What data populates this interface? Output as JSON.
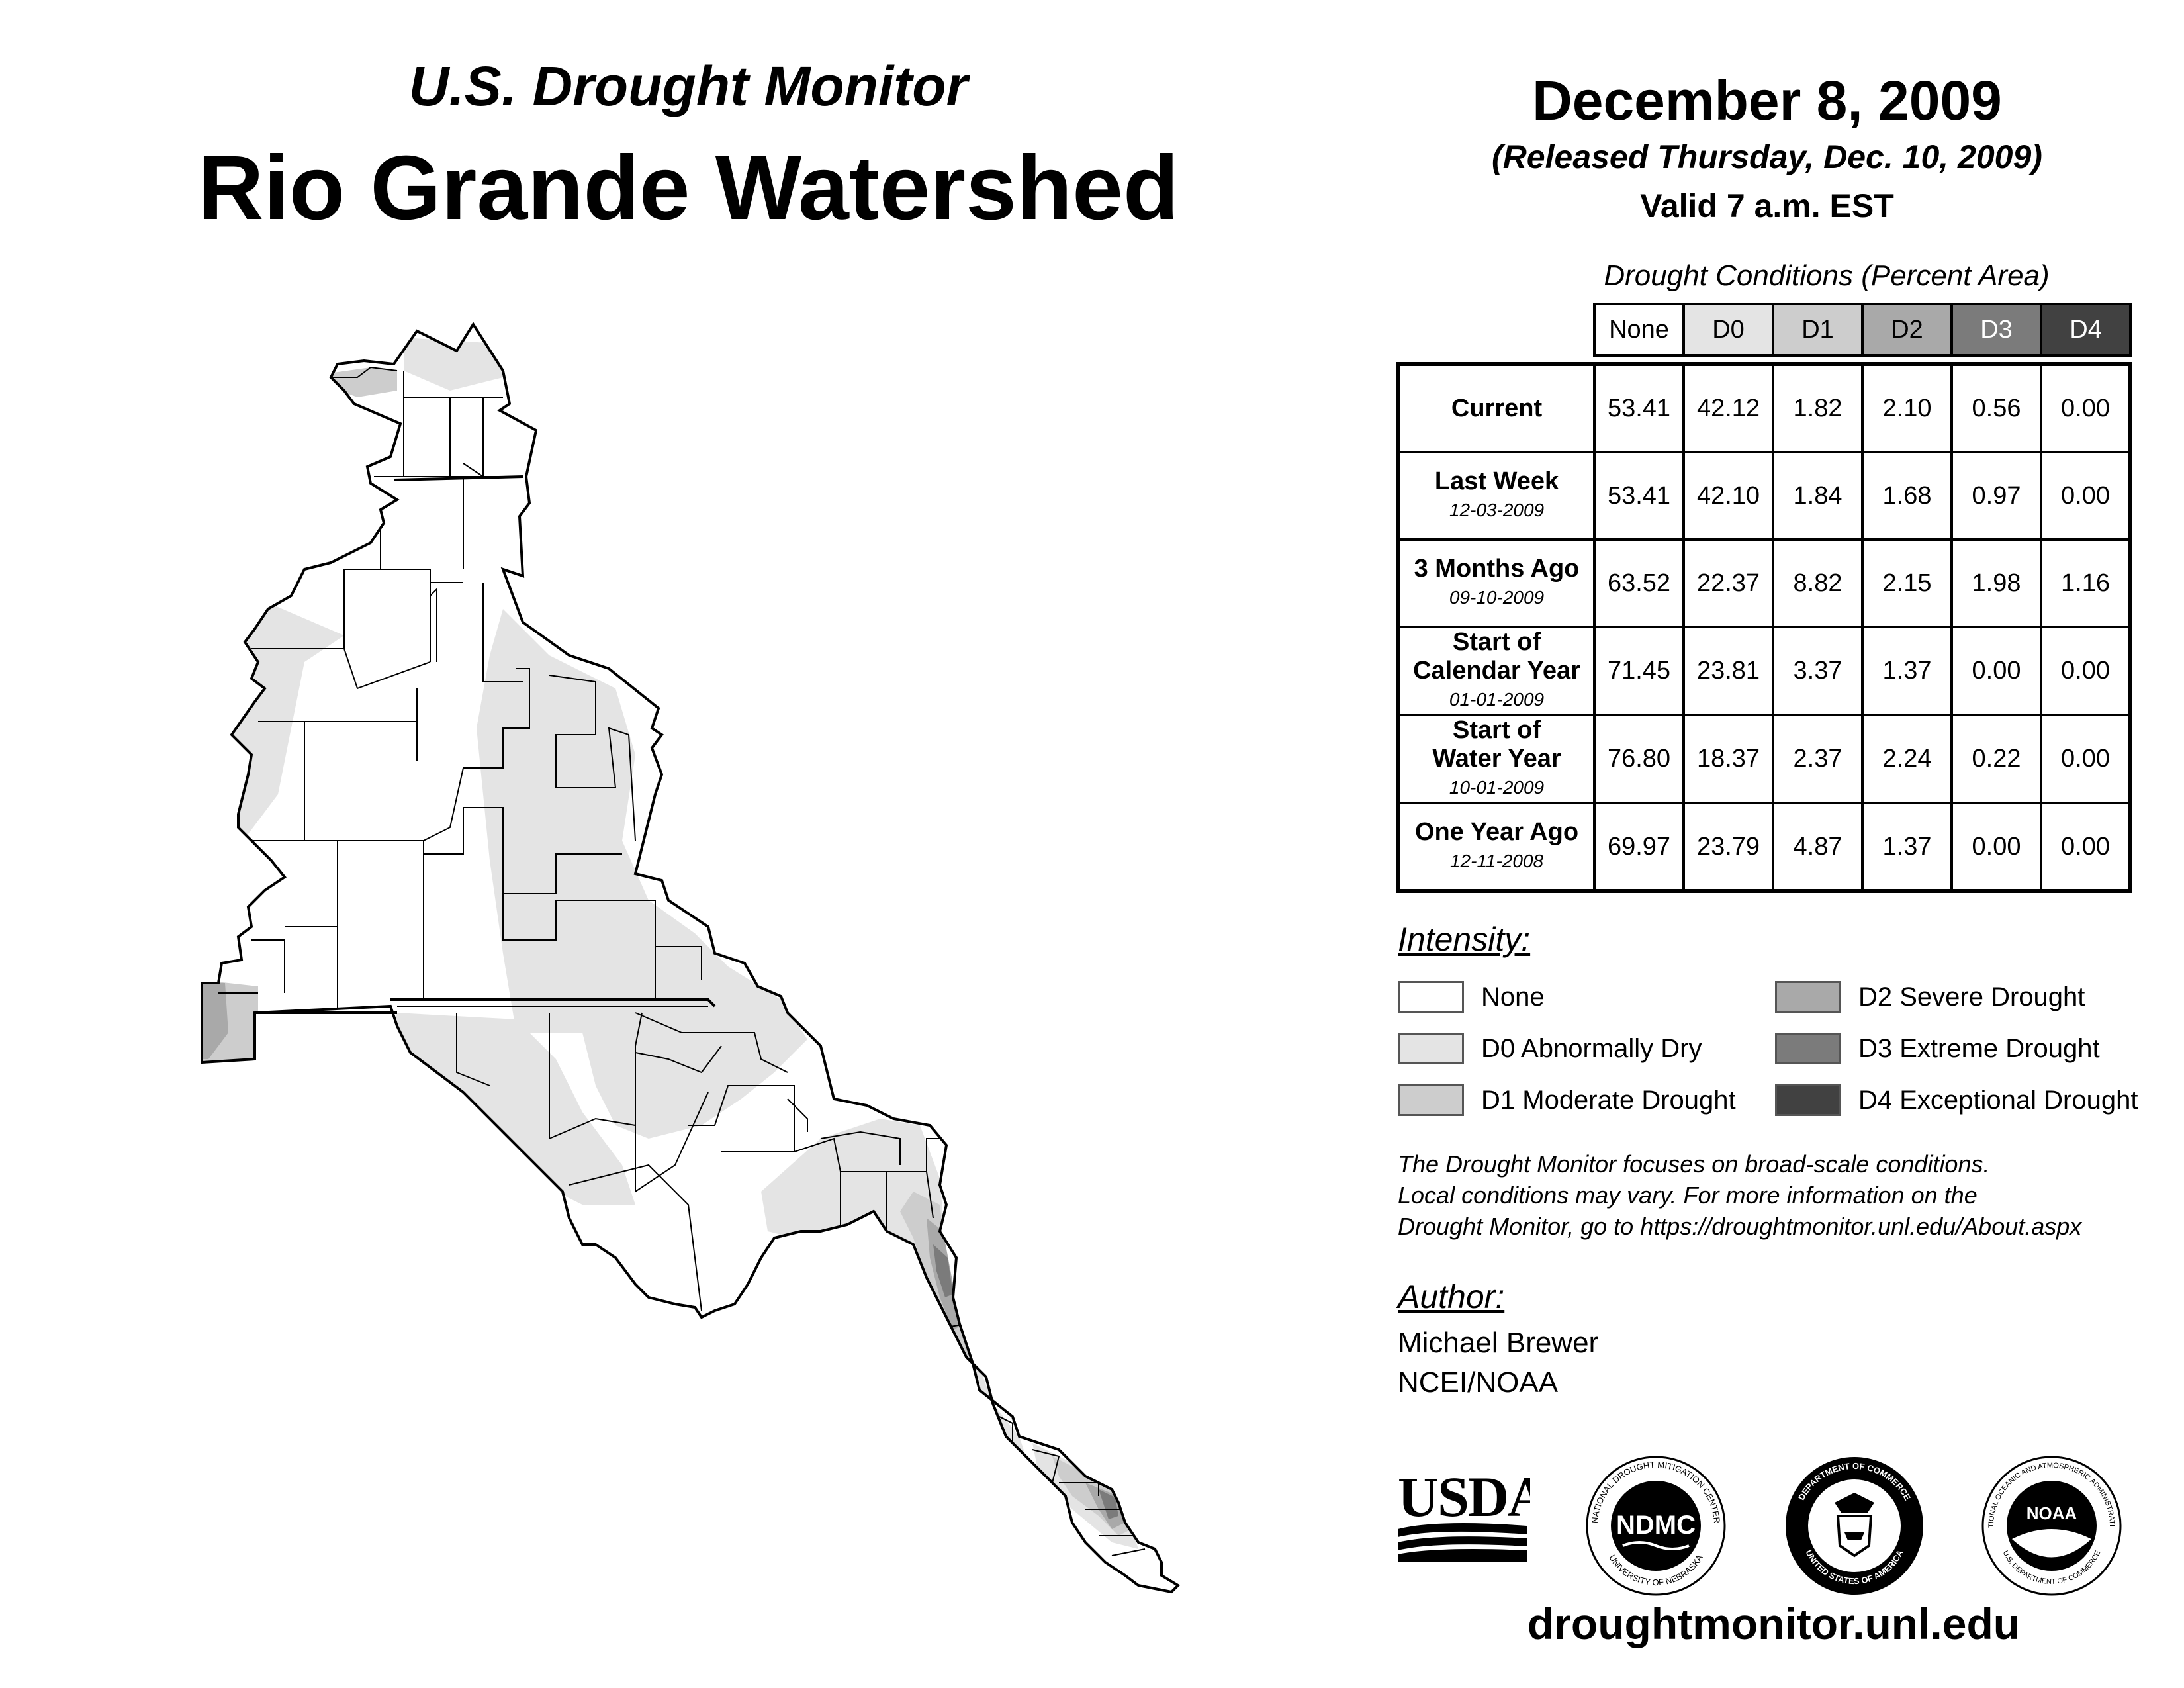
{
  "header": {
    "title_small": "U.S. Drought Monitor",
    "title_large": "Rio Grande Watershed",
    "date": "December 8, 2009",
    "released": "(Released Thursday, Dec. 10, 2009)",
    "valid": "Valid 7 a.m. EST"
  },
  "table": {
    "title": "Drought Conditions (Percent Area)",
    "columns": [
      "None",
      "D0",
      "D1",
      "D2",
      "D3",
      "D4"
    ],
    "rows": [
      {
        "label": "Current",
        "label2": "",
        "date": "",
        "values": [
          "53.41",
          "42.12",
          "1.82",
          "2.10",
          "0.56",
          "0.00"
        ]
      },
      {
        "label": "Last Week",
        "label2": "",
        "date": "12-03-2009",
        "values": [
          "53.41",
          "42.10",
          "1.84",
          "1.68",
          "0.97",
          "0.00"
        ]
      },
      {
        "label": "3 Months Ago",
        "label2": "",
        "date": "09-10-2009",
        "values": [
          "63.52",
          "22.37",
          "8.82",
          "2.15",
          "1.98",
          "1.16"
        ]
      },
      {
        "label": "Start of",
        "label2": "Calendar Year",
        "date": "01-01-2009",
        "values": [
          "71.45",
          "23.81",
          "3.37",
          "1.37",
          "0.00",
          "0.00"
        ]
      },
      {
        "label": "Start of",
        "label2": "Water Year",
        "date": "10-01-2009",
        "values": [
          "76.80",
          "18.37",
          "2.37",
          "2.24",
          "0.22",
          "0.00"
        ]
      },
      {
        "label": "One Year Ago",
        "label2": "",
        "date": "12-11-2008",
        "values": [
          "69.97",
          "23.79",
          "4.87",
          "1.37",
          "0.00",
          "0.00"
        ]
      }
    ]
  },
  "legend": {
    "heading": "Intensity:",
    "items": [
      {
        "label": "None",
        "color": "#ffffff"
      },
      {
        "label": "D0 Abnormally Dry",
        "color": "#e4e4e4"
      },
      {
        "label": "D1 Moderate Drought",
        "color": "#cdcdcd"
      },
      {
        "label": "D2 Severe Drought",
        "color": "#a9a9a9"
      },
      {
        "label": "D3 Extreme Drought",
        "color": "#7b7b7b"
      },
      {
        "label": "D4 Exceptional Drought",
        "color": "#414141"
      }
    ]
  },
  "note": {
    "line1": "The Drought Monitor focuses on broad-scale conditions.",
    "line2": "Local conditions may vary. For more information on the",
    "line3": "Drought Monitor, go to https://droughtmonitor.unl.edu/About.aspx"
  },
  "author": {
    "heading": "Author:",
    "name": "Michael Brewer",
    "org": "NCEI/NOAA"
  },
  "logos": {
    "usda": "USDA",
    "ndmc": "NDMC",
    "ndmc_ring_top": "NATIONAL DROUGHT MITIGATION CENTER",
    "ndmc_ring_bottom": "UNIVERSITY OF NEBRASKA",
    "doc_ring_top": "DEPARTMENT OF COMMERCE",
    "doc_ring_bottom": "UNITED STATES OF AMERICA",
    "noaa": "NOAA",
    "noaa_ring_top": "NATIONAL OCEANIC AND ATMOSPHERIC ADMINISTRATION",
    "noaa_ring_bottom": "U.S. DEPARTMENT OF COMMERCE"
  },
  "footer": {
    "url": "droughtmonitor.unl.edu"
  }
}
